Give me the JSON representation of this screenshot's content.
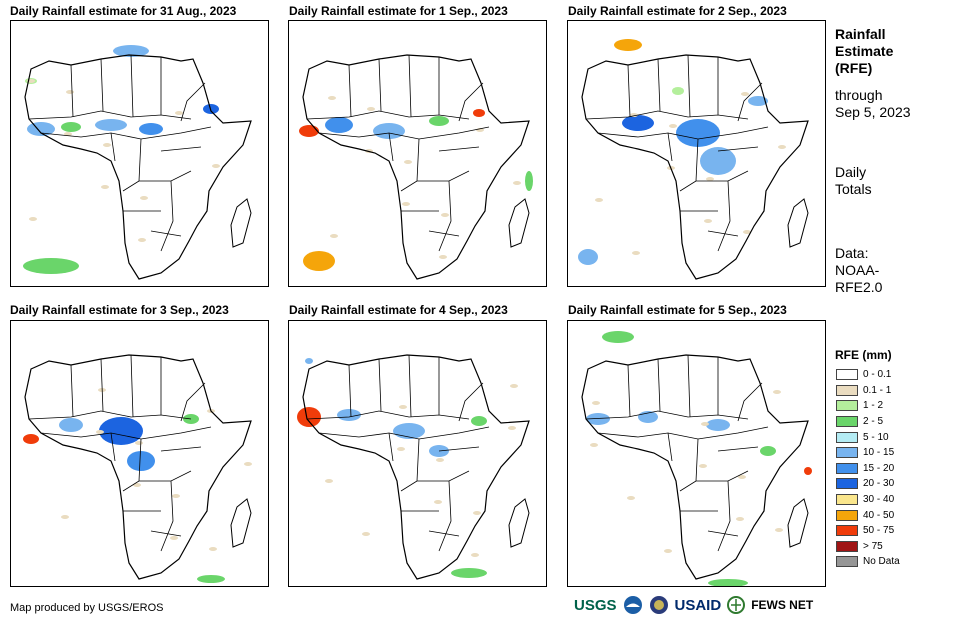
{
  "panels": [
    {
      "title": "Daily Rainfall estimate for 31 Aug., 2023"
    },
    {
      "title": "Daily Rainfall estimate for 1 Sep., 2023"
    },
    {
      "title": "Daily Rainfall estimate for 2 Sep., 2023"
    },
    {
      "title": "Daily Rainfall estimate for 3 Sep., 2023"
    },
    {
      "title": "Daily Rainfall estimate for 4 Sep., 2023"
    },
    {
      "title": "Daily Rainfall estimate for 5 Sep., 2023"
    }
  ],
  "sidebar": {
    "heading": [
      "Rainfall",
      "Estimate",
      "(RFE)"
    ],
    "through": [
      "through",
      "Sep 5, 2023"
    ],
    "totals": [
      "Daily",
      "Totals"
    ],
    "data_source": [
      "Data:",
      "NOAA-",
      "RFE2.0"
    ]
  },
  "legend": {
    "title": "RFE (mm)",
    "items": [
      {
        "label": "0 - 0.1",
        "color": "#ffffff"
      },
      {
        "label": "0.1 - 1",
        "color": "#eadcc0"
      },
      {
        "label": "1 - 2",
        "color": "#b4ef9c"
      },
      {
        "label": "2 - 5",
        "color": "#6ad56a"
      },
      {
        "label": "5 - 10",
        "color": "#b4ecf4"
      },
      {
        "label": "10 - 15",
        "color": "#78b4ef"
      },
      {
        "label": "15 - 20",
        "color": "#4190ec"
      },
      {
        "label": "20 - 30",
        "color": "#1c64e0"
      },
      {
        "label": "30 - 40",
        "color": "#fae68c"
      },
      {
        "label": "40 - 50",
        "color": "#f5a50a"
      },
      {
        "label": "50 - 75",
        "color": "#f03c0a"
      },
      {
        "label": "> 75",
        "color": "#a01414"
      },
      {
        "label": "No Data",
        "color": "#969696"
      }
    ]
  },
  "footer": {
    "credit": "Map produced by USGS/EROS",
    "logos": {
      "usgs": "USGS",
      "usaid": "USAID",
      "fews": "FEWS NET"
    }
  }
}
